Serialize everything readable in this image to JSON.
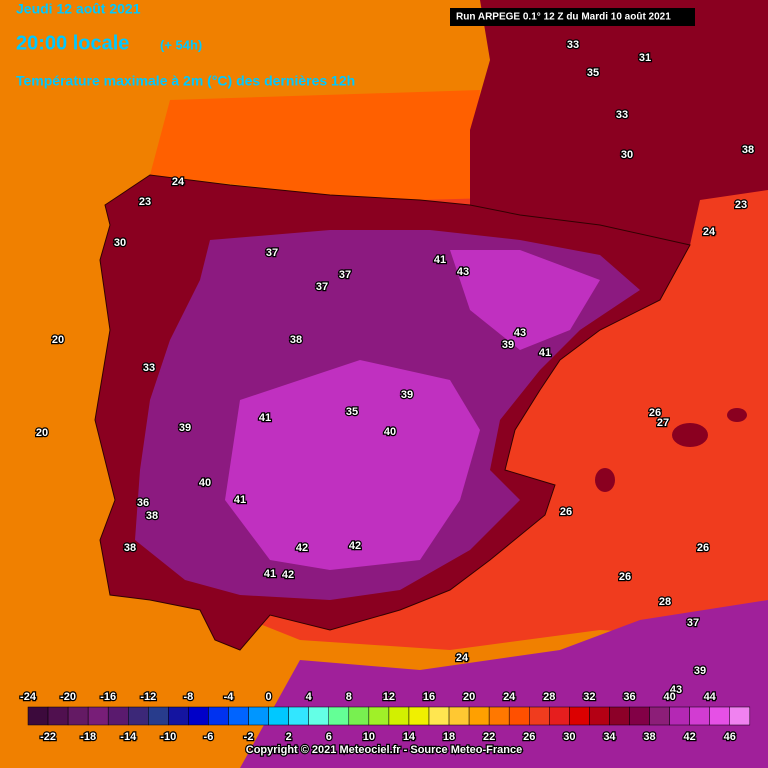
{
  "header": {
    "date": "Jeudi 12 août 2021",
    "time": "20:00 locale",
    "lead": "(+ 54h)",
    "subtitle": "Température maximale à 2m (°C) des dernières 12h",
    "run": "Run ARPEGE 0.1° 12 Z du Mardi 10 août 2021"
  },
  "scale": {
    "top_labels": [
      -24,
      -20,
      -16,
      -12,
      -8,
      -4,
      0,
      4,
      8,
      12,
      16,
      20,
      24,
      28,
      32,
      36,
      40,
      44
    ],
    "bottom_labels": [
      -22,
      -18,
      -14,
      -10,
      -6,
      -2,
      2,
      6,
      10,
      14,
      18,
      22,
      26,
      30,
      34,
      38,
      42,
      46
    ]
  },
  "map_labels": [
    "20",
    "20",
    "24",
    "23",
    "37",
    "37",
    "37",
    "38",
    "41",
    "43",
    "43",
    "41",
    "39",
    "39",
    "39",
    "41",
    "40",
    "40",
    "41",
    "42",
    "42",
    "41",
    "42",
    "38",
    "36",
    "38",
    "26",
    "27",
    "26",
    "26",
    "26",
    "28",
    "24",
    "33",
    "35",
    "33",
    "30",
    "38",
    "23",
    "24",
    "31",
    "35",
    "33",
    "30",
    "37",
    "39",
    "43"
  ],
  "footer": "Copyright © 2021 Meteociel.fr - Source Meteo-France"
}
